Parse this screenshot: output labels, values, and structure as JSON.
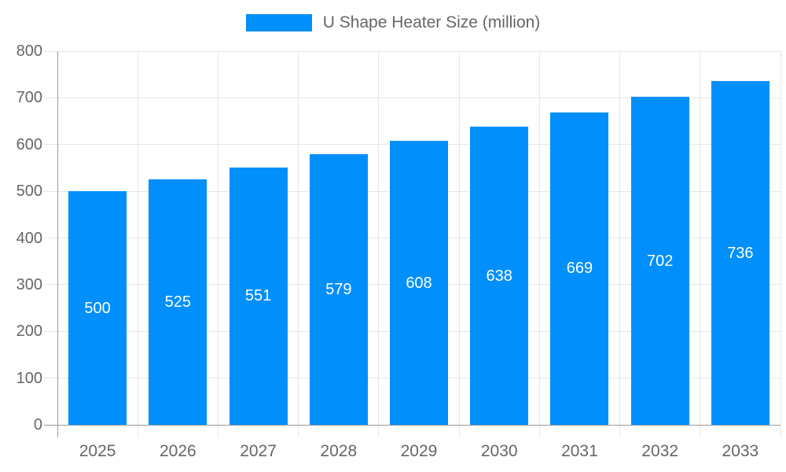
{
  "legend": {
    "label": "U Shape Heater Size (million)"
  },
  "chart_data": {
    "type": "bar",
    "categories": [
      "2025",
      "2026",
      "2027",
      "2028",
      "2029",
      "2030",
      "2031",
      "2032",
      "2033"
    ],
    "values": [
      500,
      525,
      551,
      579,
      608,
      638,
      669,
      702,
      736
    ],
    "series_name": "U Shape Heater Size (million)",
    "title": "",
    "xlabel": "",
    "ylabel": "",
    "ylim": [
      0,
      800
    ],
    "ytick_step": 100,
    "yticks": [
      "0",
      "100",
      "200",
      "300",
      "400",
      "500",
      "600",
      "700",
      "800"
    ],
    "grid": true,
    "legend_position": "top",
    "value_labels_inside_bars": true,
    "colors": {
      "bar": "#008FFB",
      "bar_label_text": "#ffffff",
      "axis_text": "#666666",
      "gridline": "#e7e7e7",
      "axis_line": "#9a9a9a",
      "background": "#ffffff"
    }
  }
}
